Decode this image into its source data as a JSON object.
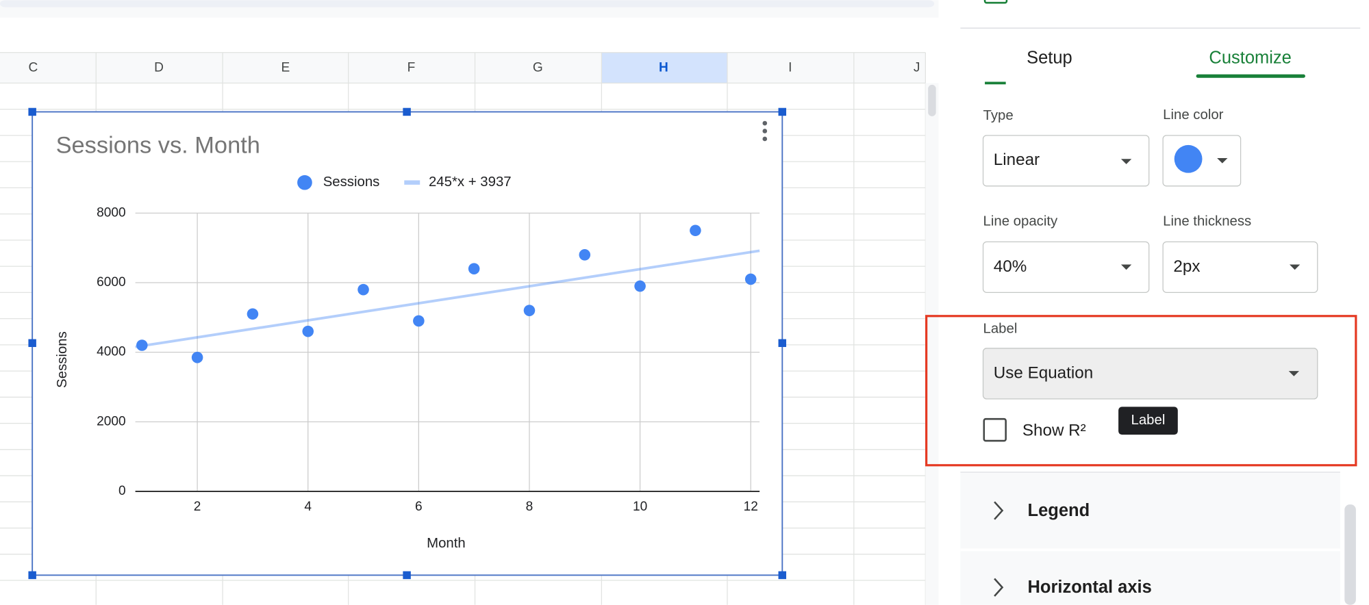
{
  "spreadsheet": {
    "columns": [
      "C",
      "D",
      "E",
      "F",
      "G",
      "H",
      "I",
      "J"
    ],
    "selected_column": "H"
  },
  "chart_data": {
    "type": "scatter",
    "title": "Sessions vs. Month",
    "x_label": "Month",
    "y_label": "Sessions",
    "legend": "top",
    "grid": true,
    "x": [
      1,
      2,
      3,
      4,
      5,
      6,
      7,
      8,
      9,
      10,
      11,
      12
    ],
    "series": [
      {
        "name": "Sessions",
        "color": "#4285f4",
        "values": [
          4200,
          3850,
          5100,
          4600,
          5800,
          4900,
          6400,
          5200,
          6800,
          5900,
          7500,
          6100
        ]
      }
    ],
    "trendline": {
      "name": "245*x + 3937",
      "slope": 245,
      "intercept": 3937,
      "color": "#4285f4",
      "opacity": 0.4
    },
    "xlim": [
      0.88,
      12.16
    ],
    "xticks": [
      2,
      4,
      6,
      8,
      10,
      12
    ],
    "ylim": [
      0,
      8000
    ],
    "yticks": [
      0,
      2000,
      4000,
      6000,
      8000
    ]
  },
  "panel": {
    "tabs": [
      "Setup",
      "Customize"
    ],
    "active_tab": 1,
    "type_label": "Type",
    "type_value": "Linear",
    "line_color_label": "Line color",
    "line_color": "#4285f4",
    "opacity_label": "Line opacity",
    "opacity_value": "40%",
    "thickness_label": "Line thickness",
    "thickness_value": "2px",
    "label_label": "Label",
    "label_value": "Use Equation",
    "show_r2": "Show R²",
    "tooltip": "Label",
    "sections": [
      "Legend",
      "Horizontal axis"
    ]
  }
}
